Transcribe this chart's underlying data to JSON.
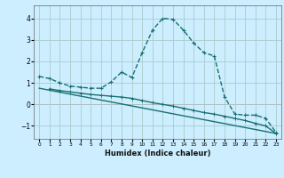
{
  "xlabel": "Humidex (Indice chaleur)",
  "bg_color": "#cceeff",
  "grid_color": "#aacccc",
  "line_color": "#1a7070",
  "xlim": [
    -0.5,
    23.5
  ],
  "ylim": [
    -1.6,
    4.6
  ],
  "xticks": [
    0,
    1,
    2,
    3,
    4,
    5,
    6,
    7,
    8,
    9,
    10,
    11,
    12,
    13,
    14,
    15,
    16,
    17,
    18,
    19,
    20,
    21,
    22,
    23
  ],
  "yticks": [
    -1,
    0,
    1,
    2,
    3,
    4
  ],
  "curve1_x": [
    0,
    1,
    2,
    3,
    4,
    5,
    6,
    7,
    8,
    9,
    10,
    11,
    12,
    13,
    14,
    15,
    16,
    17,
    18,
    19,
    20,
    21,
    22,
    23
  ],
  "curve1_y": [
    1.3,
    1.2,
    1.0,
    0.85,
    0.8,
    0.75,
    0.75,
    1.05,
    1.5,
    1.25,
    2.4,
    3.45,
    4.0,
    3.95,
    3.45,
    2.85,
    2.4,
    2.25,
    0.35,
    -0.45,
    -0.5,
    -0.5,
    -0.65,
    -1.3
  ],
  "line2_x": [
    0,
    23
  ],
  "line2_y": [
    0.75,
    -1.35
  ],
  "line3_x": [
    1,
    2,
    3,
    4,
    5,
    6,
    7,
    8,
    9,
    10,
    11,
    12,
    13,
    14,
    15,
    16,
    17,
    18,
    19,
    20,
    21,
    22,
    23
  ],
  "line3_y": [
    0.72,
    0.64,
    0.58,
    0.52,
    0.46,
    0.42,
    0.38,
    0.34,
    0.28,
    0.18,
    0.08,
    0.0,
    -0.08,
    -0.18,
    -0.28,
    -0.38,
    -0.45,
    -0.55,
    -0.65,
    -0.75,
    -0.88,
    -1.0,
    -1.35
  ]
}
